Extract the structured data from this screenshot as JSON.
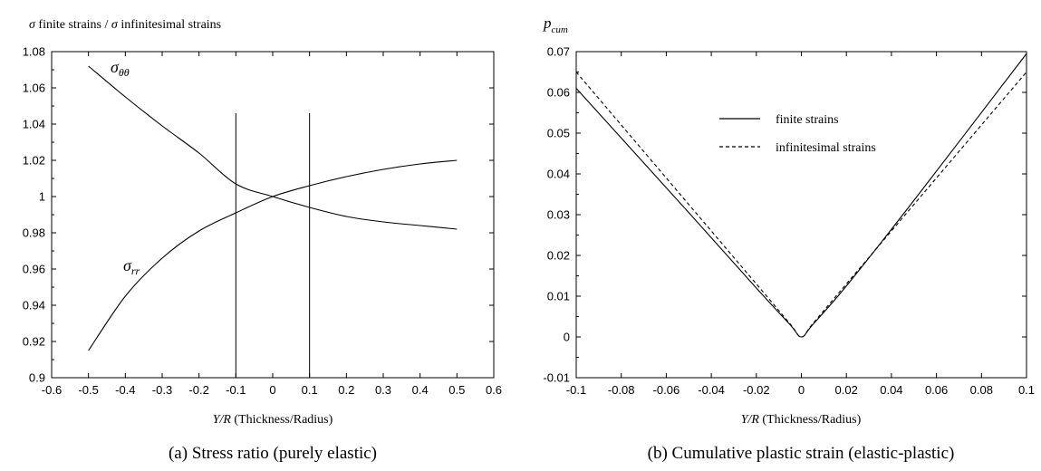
{
  "chart_data": [
    {
      "type": "line",
      "title_sigma": "σ",
      "title_mid": " finite strains / ",
      "title_sigma2": "σ",
      "title_end": " infinitesimal strains",
      "xlabel_var": "Y/R",
      "xlabel_rest": " (Thickness/Radius)",
      "caption": "(a) Stress ratio (purely elastic)",
      "xlim": [
        -0.6,
        0.6
      ],
      "ylim": [
        0.9,
        1.08
      ],
      "xticks": [
        "-0.6",
        "-0.5",
        "-0.4",
        "-0.3",
        "-0.2",
        "-0.1",
        "0",
        "0.1",
        "0.2",
        "0.3",
        "0.4",
        "0.5",
        "0.6"
      ],
      "yticks": [
        "0.9",
        "0.92",
        "0.94",
        "0.96",
        "0.98",
        "1",
        "1.02",
        "1.04",
        "1.06",
        "1.08"
      ],
      "vlines": [
        {
          "x": -0.1,
          "y_top": 1.046
        },
        {
          "x": 0.1,
          "y_top": 1.046
        }
      ],
      "series": [
        {
          "name_base": "σ",
          "name_sub": "θθ",
          "x": [
            -0.5,
            -0.4,
            -0.3,
            -0.2,
            -0.1,
            0,
            0.1,
            0.2,
            0.3,
            0.4,
            0.5
          ],
          "y": [
            1.072,
            1.055,
            1.039,
            1.024,
            1.007,
            1.0,
            0.994,
            0.989,
            0.986,
            0.984,
            0.982
          ]
        },
        {
          "name_base": "σ",
          "name_sub": "rr",
          "x": [
            -0.5,
            -0.4,
            -0.3,
            -0.2,
            -0.1,
            0,
            0.1,
            0.2,
            0.3,
            0.4,
            0.5
          ],
          "y": [
            0.915,
            0.945,
            0.966,
            0.981,
            0.991,
            1.0,
            1.006,
            1.011,
            1.015,
            1.018,
            1.02
          ]
        }
      ]
    },
    {
      "type": "line",
      "title_base": "p",
      "title_sub": "cum",
      "xlabel_var": "Y/R",
      "xlabel_rest": " (Thickness/Radius)",
      "caption": "(b) Cumulative plastic strain (elastic-plastic)",
      "xlim": [
        -0.1,
        0.1
      ],
      "ylim": [
        -0.01,
        0.07
      ],
      "xticks": [
        "-0.1",
        "-0.08",
        "-0.06",
        "-0.04",
        "-0.02",
        "0",
        "0.02",
        "0.04",
        "0.06",
        "0.08",
        "0.1"
      ],
      "yticks": [
        "-0.01",
        "0",
        "0.01",
        "0.02",
        "0.03",
        "0.04",
        "0.05",
        "0.06",
        "0.07"
      ],
      "legend": "top-center",
      "series": [
        {
          "name": "finite strains",
          "style": "solid",
          "x": [
            -0.1,
            -0.05,
            -0.02,
            -0.005,
            0,
            0.005,
            0.02,
            0.05,
            0.1
          ],
          "y": [
            0.061,
            0.0305,
            0.012,
            0.003,
            0.0,
            0.003,
            0.0125,
            0.0335,
            0.0695
          ]
        },
        {
          "name": "infinitesimal strains",
          "style": "dashed",
          "x": [
            -0.1,
            -0.05,
            -0.02,
            -0.005,
            0,
            0.005,
            0.02,
            0.05,
            0.1
          ],
          "y": [
            0.065,
            0.0325,
            0.013,
            0.0032,
            0.0,
            0.0032,
            0.013,
            0.0325,
            0.065
          ]
        }
      ]
    }
  ]
}
